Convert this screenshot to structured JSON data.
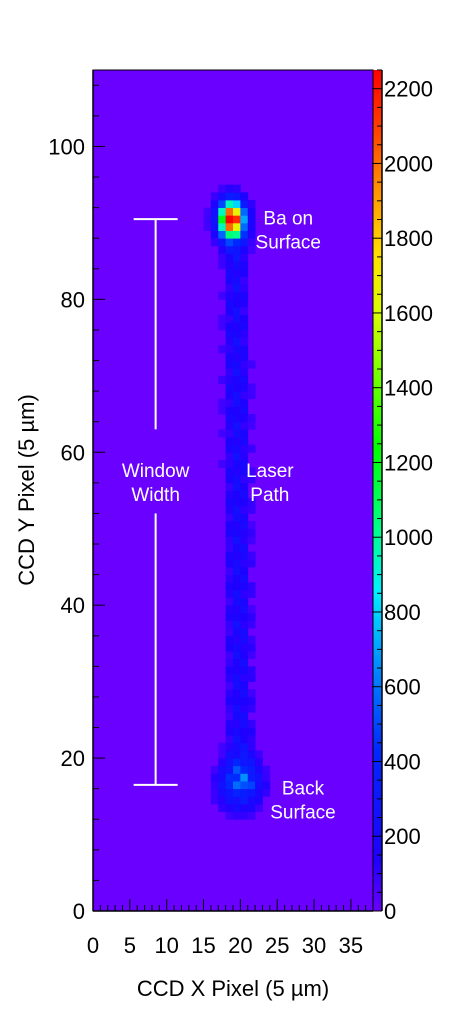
{
  "chart_data": {
    "type": "heatmap",
    "title": "",
    "xlabel": "CCD X Pixel (5 µm)",
    "ylabel": "CCD Y Pixel (5 µm)",
    "xlim": [
      0,
      38
    ],
    "ylim": [
      0,
      110
    ],
    "x_ticks": [
      0,
      5,
      10,
      15,
      20,
      25,
      30,
      35
    ],
    "y_ticks": [
      0,
      20,
      40,
      60,
      80,
      100
    ],
    "colorbar": {
      "range": [
        0,
        2250
      ],
      "ticks": [
        0,
        200,
        400,
        600,
        800,
        1000,
        1200,
        1400,
        1600,
        1800,
        2000,
        2200
      ]
    },
    "background_value": 0,
    "features": [
      {
        "name": "surface_spot",
        "x_center": 18.8,
        "y_center": 90.5,
        "peak": 2250
      },
      {
        "name": "laser_path",
        "x_range": [
          18,
          22
        ],
        "y_range": [
          20,
          86
        ],
        "typical": 250
      },
      {
        "name": "back_surface_spot",
        "x_center": 20,
        "y_center": 16.5,
        "peak": 480
      }
    ],
    "annotations": [
      {
        "lines": [
          "Ba on",
          "Surface"
        ],
        "x": 26.5,
        "y": 89.5
      },
      {
        "lines": [
          "Laser",
          "Path"
        ],
        "x": 24,
        "y": 56.5
      },
      {
        "lines": [
          "Back",
          "Surface"
        ],
        "x": 28.5,
        "y": 15
      },
      {
        "lines": [
          "Window",
          "Width"
        ],
        "x": 8.5,
        "y": 56.5
      }
    ],
    "window_width_marker": {
      "x": 8.5,
      "y_top": 90.5,
      "y_bottom": 16.5
    },
    "grid": false,
    "legend": "none"
  }
}
